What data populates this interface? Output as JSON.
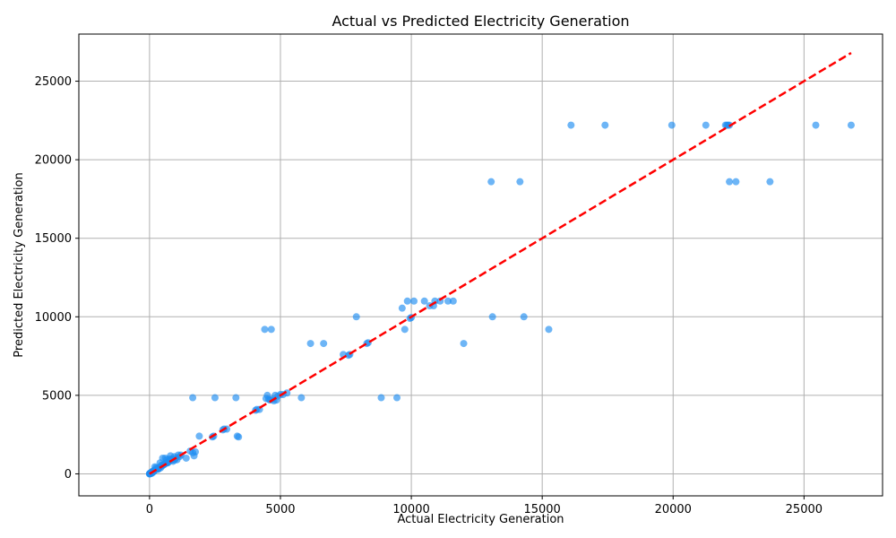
{
  "chart_data": {
    "type": "scatter",
    "title": "Actual vs Predicted Electricity Generation",
    "xlabel": "Actual Electricity Generation",
    "ylabel": "Predicted Electricity Generation",
    "xlim": [
      -2700,
      28000
    ],
    "ylim": [
      -1400,
      28000
    ],
    "xticks": [
      0,
      5000,
      10000,
      15000,
      20000,
      25000
    ],
    "yticks": [
      0,
      5000,
      10000,
      15000,
      20000,
      25000
    ],
    "grid": true,
    "point_color": "#1f8ef1",
    "point_alpha": 0.65,
    "reference_line": {
      "style": "dashed",
      "color": "#ff0000",
      "from": [
        0,
        0
      ],
      "to": [
        26800,
        26800
      ]
    },
    "points": [
      [
        26800,
        22200
      ],
      [
        25450,
        22200
      ],
      [
        22100,
        22200
      ],
      [
        22150,
        22200
      ],
      [
        22050,
        22200
      ],
      [
        22000,
        22200
      ],
      [
        21250,
        22200
      ],
      [
        19950,
        22200
      ],
      [
        17400,
        22200
      ],
      [
        16100,
        22200
      ],
      [
        23700,
        18600
      ],
      [
        22400,
        18600
      ],
      [
        22150,
        18600
      ],
      [
        14150,
        18600
      ],
      [
        13050,
        18600
      ],
      [
        15250,
        9200
      ],
      [
        14300,
        10000
      ],
      [
        13100,
        10000
      ],
      [
        12000,
        8300
      ],
      [
        11600,
        11000
      ],
      [
        11400,
        11000
      ],
      [
        11100,
        11000
      ],
      [
        10900,
        11000
      ],
      [
        10850,
        10700
      ],
      [
        10700,
        10700
      ],
      [
        10500,
        11000
      ],
      [
        10100,
        11000
      ],
      [
        9850,
        11000
      ],
      [
        9650,
        10550
      ],
      [
        10000,
        9950
      ],
      [
        9950,
        9900
      ],
      [
        9750,
        9200
      ],
      [
        9450,
        4850
      ],
      [
        8850,
        4850
      ],
      [
        8350,
        8350
      ],
      [
        8300,
        8300
      ],
      [
        7650,
        7600
      ],
      [
        7600,
        7550
      ],
      [
        7400,
        7600
      ],
      [
        7900,
        10000
      ],
      [
        6650,
        8300
      ],
      [
        6150,
        8300
      ],
      [
        5800,
        4850
      ],
      [
        4650,
        9200
      ],
      [
        4400,
        9200
      ],
      [
        5250,
        5150
      ],
      [
        5100,
        5050
      ],
      [
        5000,
        5050
      ],
      [
        4900,
        4950
      ],
      [
        4850,
        4700
      ],
      [
        4800,
        5000
      ],
      [
        4750,
        4650
      ],
      [
        4700,
        4750
      ],
      [
        4600,
        4700
      ],
      [
        4550,
        4750
      ],
      [
        4500,
        5000
      ],
      [
        4450,
        4800
      ],
      [
        4200,
        4100
      ],
      [
        4100,
        4100
      ],
      [
        4050,
        4050
      ],
      [
        3300,
        4850
      ],
      [
        2500,
        4850
      ],
      [
        1650,
        4850
      ],
      [
        3400,
        2350
      ],
      [
        3350,
        2400
      ],
      [
        2950,
        2850
      ],
      [
        2850,
        2850
      ],
      [
        2800,
        2800
      ],
      [
        2450,
        2400
      ],
      [
        2400,
        2350
      ],
      [
        1900,
        2400
      ],
      [
        1750,
        1400
      ],
      [
        1700,
        1150
      ],
      [
        1650,
        1350
      ],
      [
        1550,
        1450
      ],
      [
        1400,
        1000
      ],
      [
        1200,
        1200
      ],
      [
        1150,
        1100
      ],
      [
        1100,
        1200
      ],
      [
        1050,
        900
      ],
      [
        1000,
        1000
      ],
      [
        950,
        1100
      ],
      [
        900,
        800
      ],
      [
        850,
        950
      ],
      [
        800,
        1150
      ],
      [
        750,
        950
      ],
      [
        700,
        700
      ],
      [
        650,
        900
      ],
      [
        600,
        1000
      ],
      [
        550,
        600
      ],
      [
        500,
        1000
      ],
      [
        450,
        550
      ],
      [
        400,
        700
      ],
      [
        350,
        350
      ],
      [
        300,
        300
      ],
      [
        250,
        400
      ],
      [
        200,
        450
      ],
      [
        180,
        200
      ],
      [
        150,
        200
      ],
      [
        120,
        150
      ],
      [
        100,
        100
      ],
      [
        80,
        120
      ],
      [
        60,
        50
      ],
      [
        40,
        30
      ],
      [
        20,
        20
      ],
      [
        10,
        5
      ],
      [
        5,
        0
      ],
      [
        0,
        0
      ],
      [
        0,
        10
      ],
      [
        15,
        25
      ],
      [
        30,
        60
      ],
      [
        50,
        20
      ],
      [
        70,
        90
      ],
      [
        90,
        40
      ],
      [
        130,
        110
      ],
      [
        160,
        140
      ],
      [
        220,
        250
      ],
      [
        270,
        320
      ],
      [
        330,
        290
      ],
      [
        380,
        420
      ],
      [
        420,
        380
      ],
      [
        480,
        500
      ],
      [
        520,
        560
      ],
      [
        580,
        620
      ],
      [
        620,
        680
      ],
      [
        680,
        720
      ],
      [
        720,
        760
      ],
      [
        760,
        840
      ],
      [
        820,
        860
      ],
      [
        880,
        920
      ],
      [
        960,
        880
      ]
    ]
  }
}
